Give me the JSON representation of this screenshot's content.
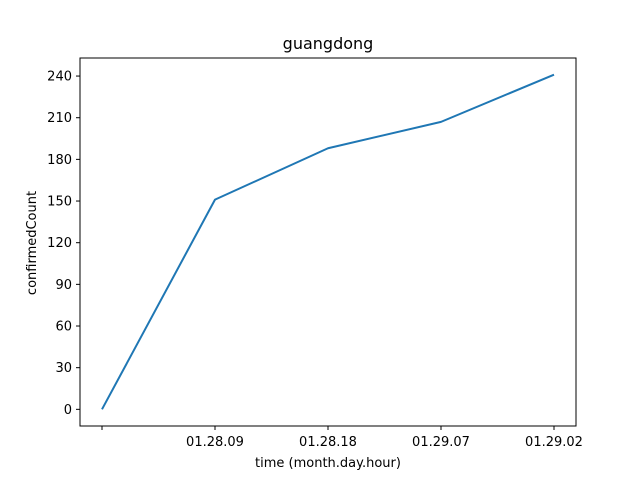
{
  "chart_data": {
    "type": "line",
    "title": "guangdong",
    "xlabel": "time (month.day.hour)",
    "ylabel": "confirmedCount",
    "x_tick_labels": [
      "",
      "01.28.09",
      "01.28.18",
      "01.29.07",
      "01.29.02"
    ],
    "series": [
      {
        "values": [
          0,
          151,
          188,
          207,
          241
        ]
      }
    ],
    "yticks": [
      0,
      30,
      60,
      90,
      120,
      150,
      180,
      210,
      240
    ],
    "ylim": [
      -12,
      253
    ],
    "grid": false,
    "legend": "none",
    "colors": {
      "line": "#1f77b4",
      "axes": "#000000",
      "background": "#ffffff"
    }
  }
}
